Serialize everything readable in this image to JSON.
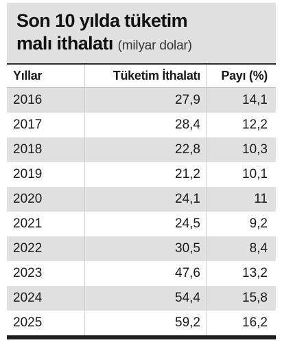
{
  "title": {
    "line1": "Son 10 yılda tüketim",
    "line2_main": "malı ithalatı",
    "line2_unit": "(milyar dolar)"
  },
  "table": {
    "headers": [
      "Yıllar",
      "Tüketim İthalatı",
      "Payı (%)"
    ],
    "rows": [
      [
        "2016",
        "27,9",
        "14,1"
      ],
      [
        "2017",
        "28,4",
        "12,2"
      ],
      [
        "2018",
        "22,8",
        "10,3"
      ],
      [
        "2019",
        "21,2",
        "10,1"
      ],
      [
        "2020",
        "24,1",
        "11"
      ],
      [
        "2021",
        "24,5",
        "9,2"
      ],
      [
        "2022",
        "30,5",
        "8,4"
      ],
      [
        "2023",
        "47,6",
        "13,2"
      ],
      [
        "2024",
        "54,4",
        "15,8"
      ],
      [
        "2025",
        "59,2",
        "16,2"
      ]
    ]
  },
  "colors": {
    "shade": "#e1e1e1",
    "rule": "#1f1f1f"
  }
}
